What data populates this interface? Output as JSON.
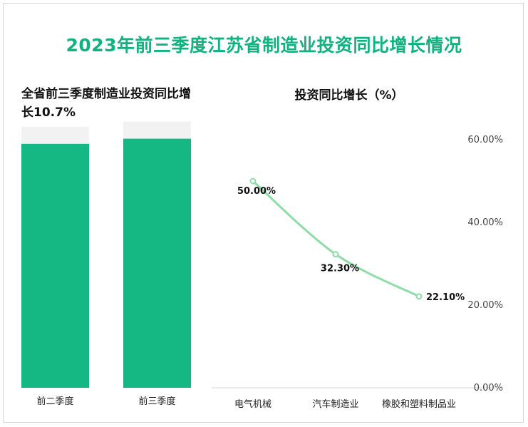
{
  "title": "2023年前三季度江苏省制造业投资同比增长情况",
  "colors": {
    "accent": "#12b27f",
    "bar": "#15b783",
    "bar_track": "#f2f2f2",
    "line": "#8fdca8"
  },
  "chart_data": [
    {
      "type": "bar",
      "title": "全省前三季度制造业投资同比增长10.7%",
      "categories": [
        "前二季度",
        "前三季度"
      ],
      "values": [
        94,
        96
      ],
      "ylim": [
        0,
        100
      ],
      "grid": false,
      "legend": "none"
    },
    {
      "type": "line",
      "title": "投资同比增长（%）",
      "categories": [
        "电气机械",
        "汽车制造业",
        "橡胶和塑料制品业"
      ],
      "values": [
        50.0,
        32.3,
        22.1
      ],
      "data_labels": [
        "50.00%",
        "32.30%",
        "22.10%"
      ],
      "yticks": [
        "0.00%",
        "20.00%",
        "40.00%",
        "60.00%"
      ],
      "ylim": [
        0,
        60
      ],
      "y_axis_position": "right",
      "grid": false,
      "legend": "none"
    }
  ]
}
